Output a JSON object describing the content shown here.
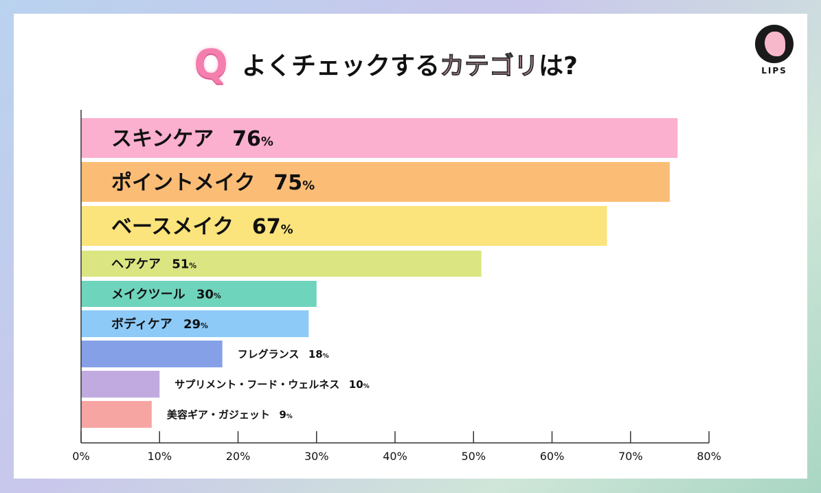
{
  "header": {
    "q": "Q",
    "title_pre": "よくチェックする",
    "title_highlight": "カテゴリ",
    "title_post": "は?"
  },
  "logo": {
    "text": "LIPS"
  },
  "chart_data": {
    "type": "bar",
    "orientation": "horizontal",
    "categories": [
      "スキンケア",
      "ポイントメイク",
      "ベースメイク",
      "ヘアケア",
      "メイクツール",
      "ボディケア",
      "フレグランス",
      "サプリメント・フード・ウェルネス",
      "美容ギア・ガジェット"
    ],
    "values": [
      76,
      75,
      67,
      51,
      30,
      29,
      18,
      10,
      9
    ],
    "colors": [
      "#fbb0cf",
      "#fbbd76",
      "#fbe47c",
      "#dbe682",
      "#6fd4bc",
      "#8dcaf7",
      "#86a0e8",
      "#c1aae0",
      "#f7a5a3"
    ],
    "xlim": [
      0,
      80
    ],
    "xticks": [
      "0%",
      "10%",
      "20%",
      "30%",
      "40%",
      "50%",
      "60%",
      "70%",
      "80%"
    ],
    "unit": "%"
  }
}
